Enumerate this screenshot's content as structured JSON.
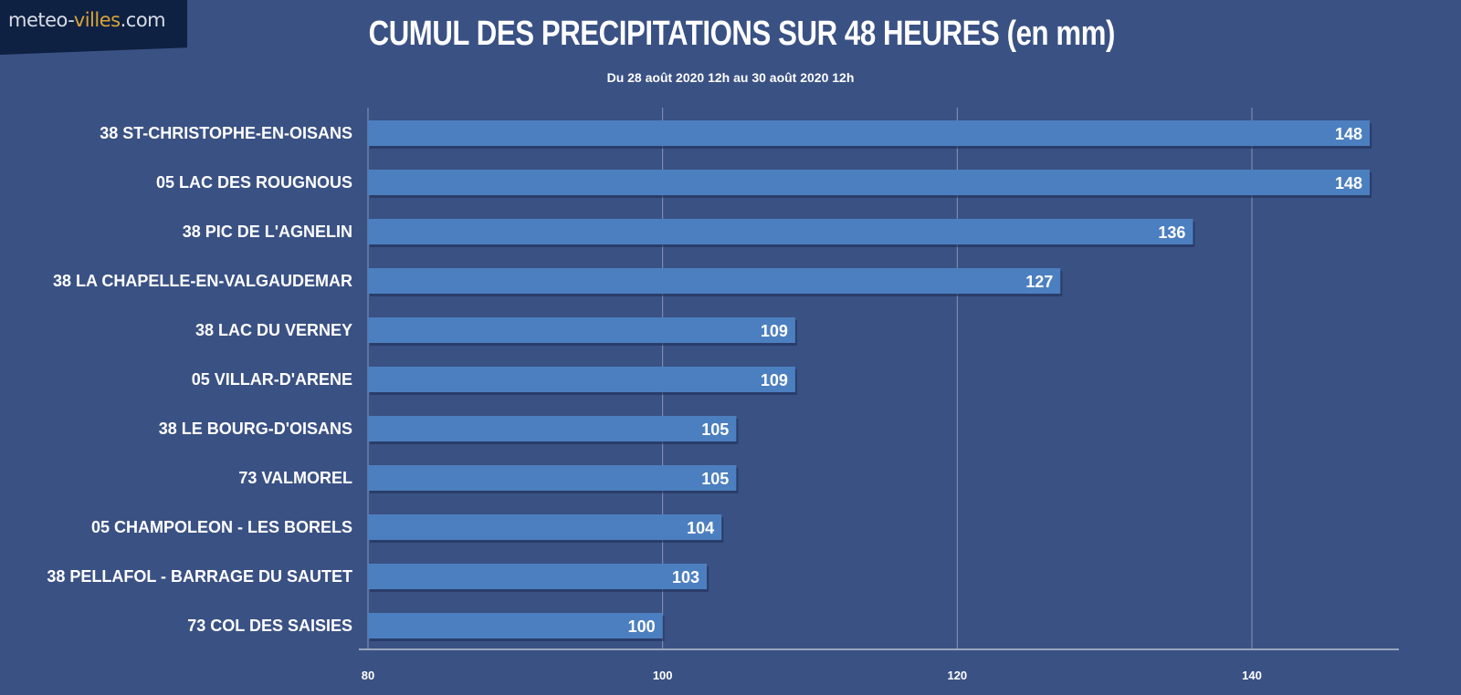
{
  "logo": {
    "part1": "meteo-",
    "part2": "villes",
    "part3": ".com"
  },
  "chart_data": {
    "type": "bar",
    "orientation": "horizontal",
    "title": "CUMUL DES PRECIPITATIONS SUR 48 HEURES (en mm)",
    "subtitle": "Du 28 août 2020 12h au 30 août 2020 12h",
    "categories": [
      "38 ST-CHRISTOPHE-EN-OISANS",
      "05 LAC DES ROUGNOUS",
      "38 PIC DE L'AGNELIN",
      "38 LA CHAPELLE-EN-VALGAUDEMAR",
      "38 LAC DU VERNEY",
      "05 VILLAR-D'ARENE",
      "38 LE BOURG-D'OISANS",
      "73 VALMOREL",
      "05 CHAMPOLEON - LES BORELS",
      "38 PELLAFOL - BARRAGE DU SAUTET",
      "73 COL DES SAISIES"
    ],
    "values": [
      148,
      148,
      136,
      127,
      109,
      109,
      105,
      105,
      104,
      103,
      100
    ],
    "xlim": [
      80,
      150
    ],
    "xticks": [
      80,
      100,
      120,
      140
    ],
    "grid": true,
    "colors": {
      "bar": "#4c7fbf",
      "background": "#3a5184",
      "grid": "#8a97b3"
    }
  }
}
